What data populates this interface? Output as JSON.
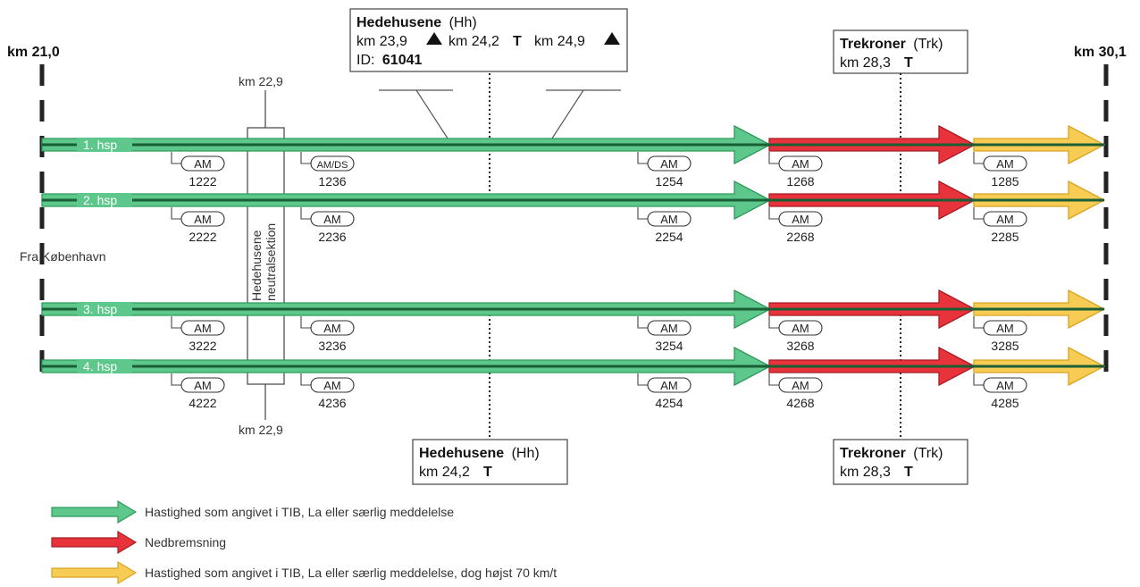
{
  "km_start": "km 21,0",
  "km_end": "km 30,1",
  "neutral": {
    "km_top": "km 22,9",
    "km_bottom": "km 22,9",
    "label_line1": "Hedehusene",
    "label_line2": "neutralsektion"
  },
  "origin_label": "Fra København",
  "stations": {
    "hedehusene_top": {
      "name": "Hedehusene",
      "abbr": "(Hh)",
      "km_a": "km 23,9",
      "km_b": "km 24,2",
      "km_b_suffix": "T",
      "km_c": "km 24,9",
      "id_label": "ID:",
      "id_value": "61041"
    },
    "trekroner_top": {
      "name": "Trekroner",
      "abbr": "(Trk)",
      "km": "km 28,3",
      "suffix": "T"
    },
    "hedehusene_bottom": {
      "name": "Hedehusene",
      "abbr": "(Hh)",
      "km": "km 24,2",
      "suffix": "T"
    },
    "trekroner_bottom": {
      "name": "Trekroner",
      "abbr": "(Trk)",
      "km": "km 28,3",
      "suffix": "T"
    }
  },
  "tracks": [
    {
      "label": "1. hsp",
      "am": [
        {
          "label": "AM",
          "num": "1222"
        },
        {
          "label": "AM/DS",
          "num": "1236"
        },
        {
          "label": "AM",
          "num": "1254"
        },
        {
          "label": "AM",
          "num": "1268"
        },
        {
          "label": "AM",
          "num": "1285"
        }
      ]
    },
    {
      "label": "2. hsp",
      "am": [
        {
          "label": "AM",
          "num": "2222"
        },
        {
          "label": "AM",
          "num": "2236"
        },
        {
          "label": "AM",
          "num": "2254"
        },
        {
          "label": "AM",
          "num": "2268"
        },
        {
          "label": "AM",
          "num": "2285"
        }
      ]
    },
    {
      "label": "3. hsp",
      "am": [
        {
          "label": "AM",
          "num": "3222"
        },
        {
          "label": "AM",
          "num": "3236"
        },
        {
          "label": "AM",
          "num": "3254"
        },
        {
          "label": "AM",
          "num": "3268"
        },
        {
          "label": "AM",
          "num": "3285"
        }
      ]
    },
    {
      "label": "4. hsp",
      "am": [
        {
          "label": "AM",
          "num": "4222"
        },
        {
          "label": "AM",
          "num": "4236"
        },
        {
          "label": "AM",
          "num": "4254"
        },
        {
          "label": "AM",
          "num": "4268"
        },
        {
          "label": "AM",
          "num": "4285"
        }
      ]
    }
  ],
  "legend": [
    {
      "color": "green",
      "text": "Hastighed som angivet i TIB, La eller særlig meddelelse"
    },
    {
      "color": "red",
      "text": "Nedbremsning"
    },
    {
      "color": "yellow",
      "text": "Hastighed som angivet i TIB, La eller særlig meddelelse, dog højst 70 km/t"
    }
  ],
  "colors": {
    "green_fill": "#5ec78c",
    "green_stroke": "#2e9a5c",
    "red_fill": "#e8323c",
    "red_stroke": "#a81e24",
    "yellow_fill": "#f7cc55",
    "yellow_stroke": "#d9a420",
    "track_dark": "#1a5e36"
  }
}
